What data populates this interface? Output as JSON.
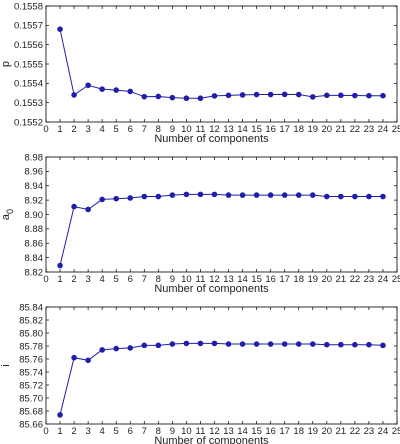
{
  "chart_data": [
    {
      "type": "line",
      "xlabel": "Number of components",
      "ylabel": "p",
      "ylabel_sub": "",
      "xlim": [
        0,
        25
      ],
      "ylim": [
        0.1552,
        0.1558
      ],
      "x_ticks": [
        0,
        1,
        2,
        3,
        4,
        5,
        6,
        7,
        8,
        9,
        10,
        11,
        12,
        13,
        14,
        15,
        16,
        17,
        18,
        19,
        20,
        21,
        22,
        23,
        24,
        25
      ],
      "y_ticks": [
        "0.1552",
        "0.1553",
        "0.1554",
        "0.1555",
        "0.1556",
        "0.1557",
        "0.1558"
      ],
      "grid": false,
      "series": [
        {
          "color": "#1f1fa8",
          "marker": "circle",
          "x": [
            1,
            2,
            3,
            4,
            5,
            6,
            7,
            8,
            9,
            10,
            11,
            12,
            13,
            14,
            15,
            16,
            17,
            18,
            19,
            20,
            21,
            22,
            23,
            24
          ],
          "y": [
            0.15568,
            0.15534,
            0.15539,
            0.15537,
            0.155365,
            0.155358,
            0.155331,
            0.155332,
            0.155326,
            0.155323,
            0.155323,
            0.155335,
            0.155338,
            0.15534,
            0.155342,
            0.155342,
            0.155343,
            0.155342,
            0.15533,
            0.155338,
            0.155338,
            0.155337,
            0.155336,
            0.155336
          ]
        }
      ]
    },
    {
      "type": "line",
      "xlabel": "Number of components",
      "ylabel": "a",
      "ylabel_sub": "0",
      "xlim": [
        0,
        25
      ],
      "ylim": [
        8.82,
        8.98
      ],
      "x_ticks": [
        0,
        1,
        2,
        3,
        4,
        5,
        6,
        7,
        8,
        9,
        10,
        11,
        12,
        13,
        14,
        15,
        16,
        17,
        18,
        19,
        20,
        21,
        22,
        23,
        24,
        25
      ],
      "y_ticks": [
        "8.82",
        "8.84",
        "8.86",
        "8.88",
        "8.90",
        "8.92",
        "8.94",
        "8.96",
        "8.98"
      ],
      "grid": false,
      "series": [
        {
          "color": "#1f1fa8",
          "marker": "circle",
          "x": [
            1,
            2,
            3,
            4,
            5,
            6,
            7,
            8,
            9,
            10,
            11,
            12,
            13,
            14,
            15,
            16,
            17,
            18,
            19,
            20,
            21,
            22,
            23,
            24
          ],
          "y": [
            8.829,
            8.911,
            8.907,
            8.921,
            8.922,
            8.923,
            8.925,
            8.925,
            8.927,
            8.928,
            8.928,
            8.928,
            8.927,
            8.927,
            8.927,
            8.927,
            8.927,
            8.927,
            8.927,
            8.925,
            8.925,
            8.925,
            8.925,
            8.925
          ]
        }
      ]
    },
    {
      "type": "line",
      "xlabel": "Number of components",
      "ylabel": "i",
      "ylabel_sub": "",
      "xlim": [
        0,
        25
      ],
      "ylim": [
        85.66,
        85.84
      ],
      "x_ticks": [
        0,
        1,
        2,
        3,
        4,
        5,
        6,
        7,
        8,
        9,
        10,
        11,
        12,
        13,
        14,
        15,
        16,
        17,
        18,
        19,
        20,
        21,
        22,
        23,
        24,
        25
      ],
      "y_ticks": [
        "85.66",
        "85.68",
        "85.70",
        "85.72",
        "85.74",
        "85.76",
        "85.78",
        "85.80",
        "85.82",
        "85.84"
      ],
      "grid": false,
      "series": [
        {
          "color": "#1f1fa8",
          "marker": "circle",
          "x": [
            1,
            2,
            3,
            4,
            5,
            6,
            7,
            8,
            9,
            10,
            11,
            12,
            13,
            14,
            15,
            16,
            17,
            18,
            19,
            20,
            21,
            22,
            23,
            24
          ],
          "y": [
            85.674,
            85.762,
            85.758,
            85.774,
            85.776,
            85.777,
            85.781,
            85.781,
            85.783,
            85.784,
            85.784,
            85.784,
            85.783,
            85.783,
            85.783,
            85.783,
            85.783,
            85.783,
            85.783,
            85.782,
            85.782,
            85.782,
            85.782,
            85.781
          ]
        }
      ]
    }
  ]
}
